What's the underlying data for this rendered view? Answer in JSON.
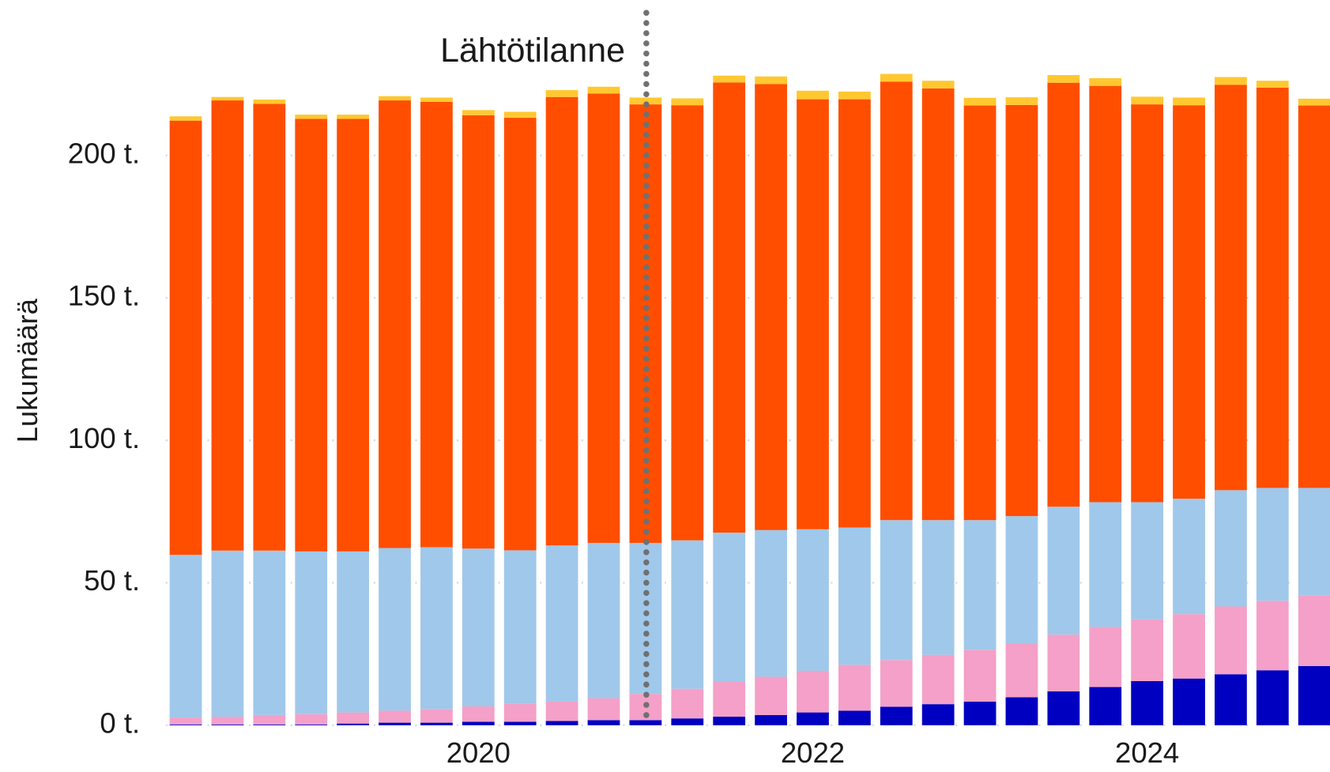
{
  "chart_data": {
    "type": "bar",
    "stacked": true,
    "annotation": "Lähtötilanne",
    "y_label": "Lukumäärä",
    "categories": [
      null,
      null,
      null,
      null,
      null,
      null,
      null,
      "2020",
      null,
      null,
      null,
      null,
      null,
      null,
      null,
      "2022",
      null,
      null,
      null,
      null,
      null,
      null,
      null,
      "2024",
      null,
      null,
      null,
      null
    ],
    "series": [
      {
        "color": "#0000c0",
        "values": [
          0.3,
          0.3,
          0.3,
          0.3,
          0.6,
          0.9,
          0.9,
          1.2,
          1.2,
          1.5,
          1.8,
          1.8,
          2.4,
          3.0,
          3.6,
          4.5,
          5.1,
          6.5,
          7.4,
          8.3,
          9.8,
          11.9,
          13.4,
          15.5,
          16.4,
          17.9,
          19.3,
          20.8
        ]
      },
      {
        "color": "#f4a0c8",
        "values": [
          2.4,
          2.7,
          3.3,
          3.6,
          3.9,
          4.2,
          4.8,
          5.4,
          6.3,
          6.8,
          7.7,
          9.2,
          10.4,
          12.2,
          13.4,
          14.6,
          16.1,
          16.4,
          17.3,
          18.2,
          19.0,
          19.9,
          21.1,
          21.7,
          22.6,
          23.8,
          24.4,
          24.7
        ]
      },
      {
        "color": "#a0c8ea",
        "values": [
          57.1,
          58.3,
          57.7,
          57.1,
          56.5,
          57.1,
          56.8,
          55.4,
          53.9,
          54.8,
          54.5,
          53.0,
          52.1,
          52.4,
          51.5,
          49.7,
          48.2,
          49.1,
          47.3,
          45.5,
          44.6,
          44.9,
          43.8,
          41.1,
          40.5,
          40.8,
          39.6,
          37.8
        ]
      },
      {
        "color": "#ff4e00",
        "values": [
          152.4,
          158.0,
          156.8,
          151.8,
          151.8,
          157.1,
          156.3,
          152.1,
          151.8,
          157.4,
          157.7,
          153.9,
          152.7,
          158.0,
          156.5,
          150.9,
          150.3,
          153.9,
          151.5,
          145.5,
          144.3,
          148.8,
          146.1,
          139.6,
          138.1,
          142.3,
          140.5,
          134.2
        ]
      },
      {
        "color": "#ffc830",
        "values": [
          1.5,
          1.2,
          1.5,
          1.5,
          1.5,
          1.5,
          1.5,
          1.8,
          2.1,
          2.4,
          2.4,
          2.4,
          2.4,
          2.4,
          2.7,
          3.0,
          2.7,
          2.7,
          2.7,
          2.7,
          2.7,
          2.7,
          2.7,
          2.7,
          2.7,
          2.7,
          2.4,
          2.4
        ]
      }
    ],
    "ylim": [
      0,
      254.5
    ],
    "yticks": [
      {
        "value": 0,
        "label": "0 t."
      },
      {
        "value": 50,
        "label": "50 t."
      },
      {
        "value": 100,
        "label": "100 t."
      },
      {
        "value": 150,
        "label": "150 t."
      },
      {
        "value": 200,
        "label": "200 t."
      }
    ],
    "grid": true
  }
}
